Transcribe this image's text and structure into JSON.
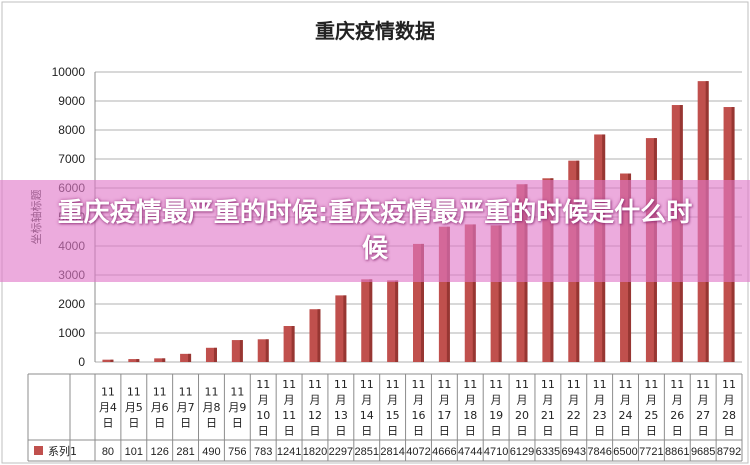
{
  "overlay": {
    "headline": "重庆疫情最严重的时候:重庆疫情最严重的时候是什么时候"
  },
  "chart_data": {
    "type": "bar",
    "title": "重庆疫情数据",
    "ylabel": "坐标轴标题",
    "xlabel": "",
    "ylim": [
      0,
      10000
    ],
    "yticks": [
      0,
      1000,
      2000,
      3000,
      4000,
      5000,
      6000,
      7000,
      8000,
      9000,
      10000
    ],
    "grid": true,
    "legend": "data-table-row",
    "bar_color": "#C0504D",
    "categories": [
      "11月4日",
      "11月5日",
      "11月6日",
      "11月7日",
      "11月8日",
      "11月9日",
      "11月10日",
      "11月11日",
      "11月12日",
      "11月13日",
      "11月14日",
      "11月15日",
      "11月16日",
      "11月17日",
      "11月18日",
      "11月19日",
      "11月20日",
      "11月21日",
      "11月22日",
      "11月23日",
      "11月24日",
      "11月25日",
      "11月26日",
      "11月27日",
      "11月28日"
    ],
    "series": [
      {
        "name": "系列1",
        "values": [
          80,
          101,
          126,
          281,
          490,
          756,
          783,
          1241,
          1820,
          2297,
          2851,
          2814,
          4072,
          4666,
          4744,
          4710,
          6129,
          6335,
          6943,
          7846,
          6500,
          7721,
          8861,
          9685,
          8792
        ]
      }
    ]
  }
}
